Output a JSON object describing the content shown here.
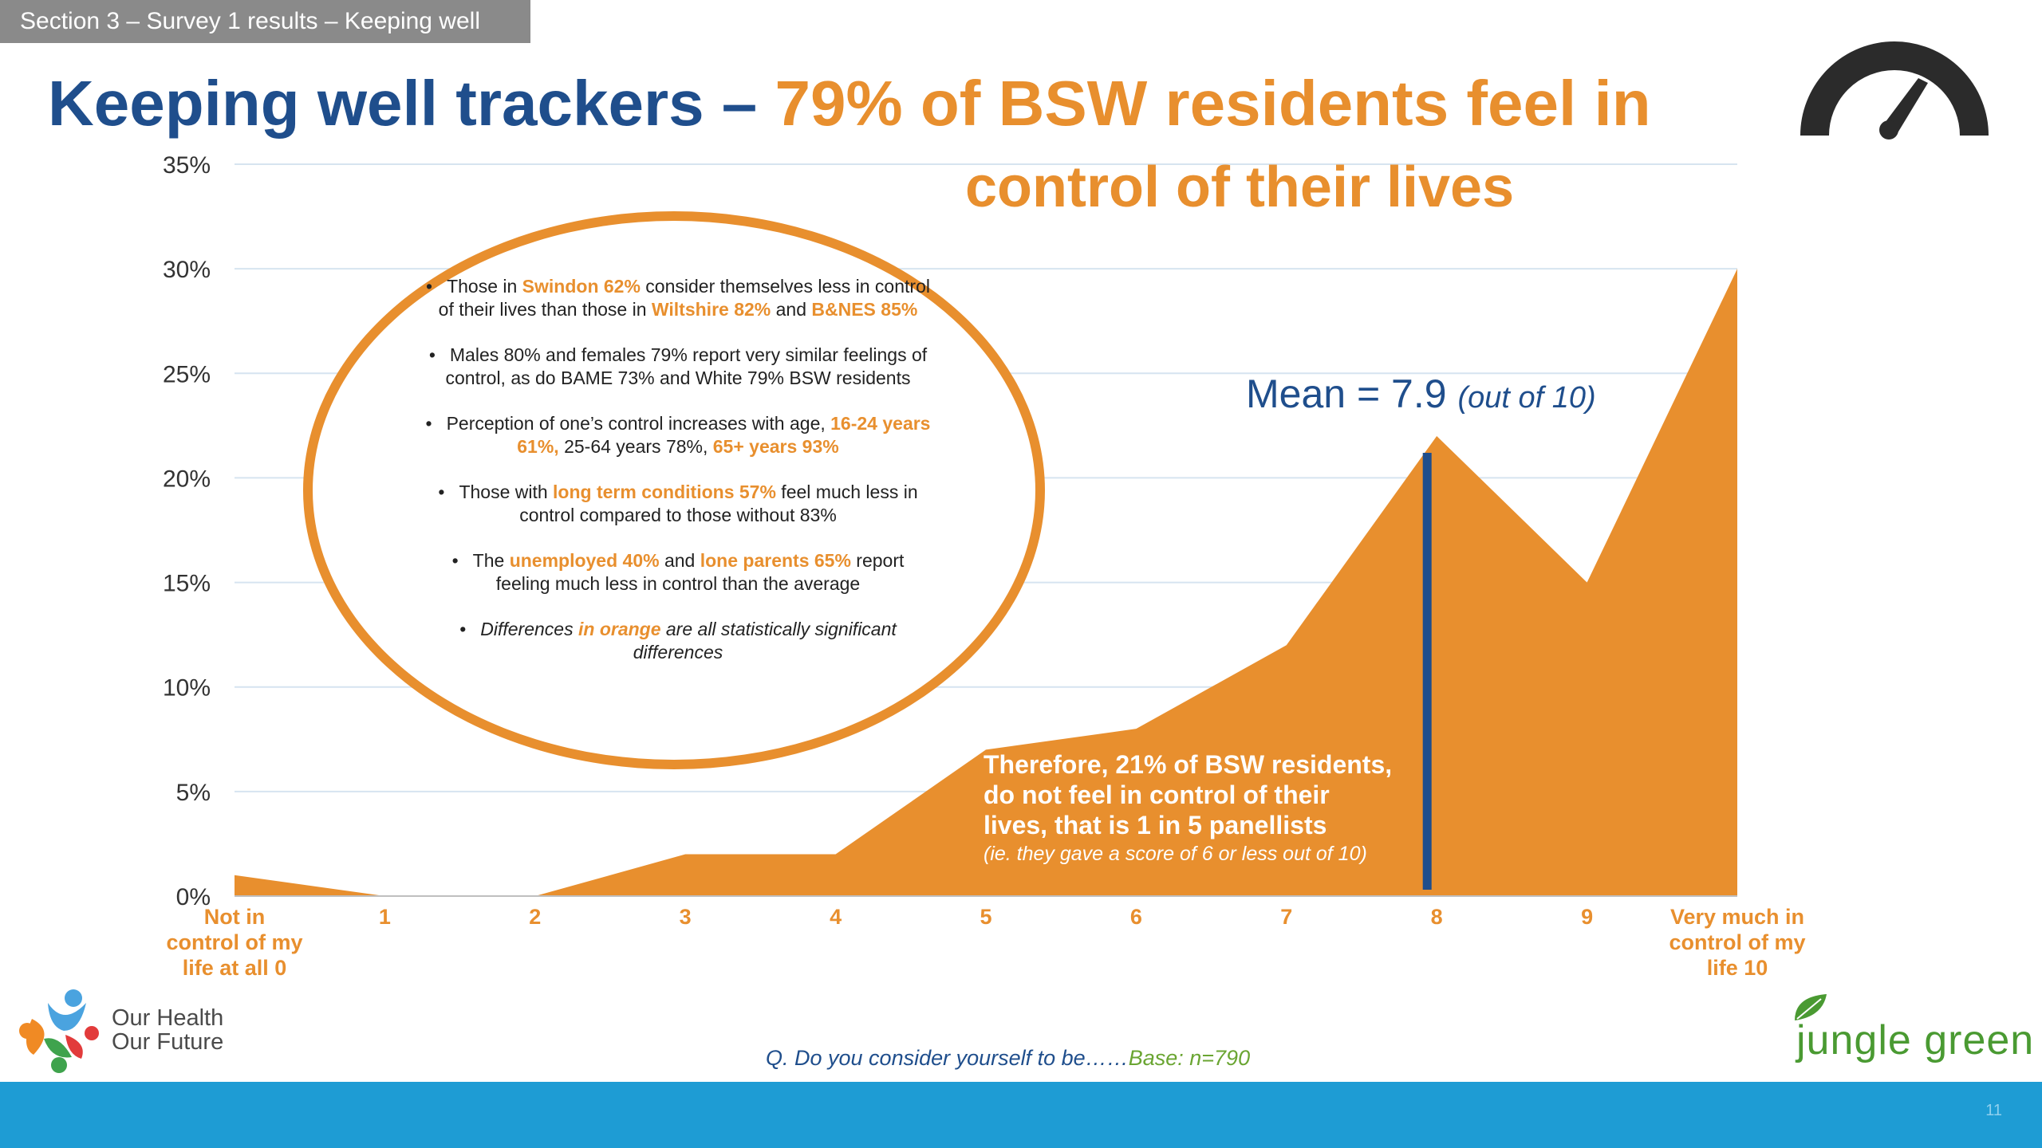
{
  "section_tab": "Section 3 – Survey 1 results – Keeping well",
  "title": {
    "main": "Keeping well trackers – ",
    "highlight": "79% of BSW residents feel in",
    "line2": "control of their lives"
  },
  "colors": {
    "accent_orange": "#e88f2e",
    "title_blue": "#1f4e8c",
    "mean_line": "#1f4e8c",
    "footer_bar": "#1e9cd4",
    "grid": "#d6e4f0"
  },
  "icons": {
    "top_right": "speedometer-gauge-icon",
    "bottom_left_logo": "our-health-our-future-logo",
    "bottom_right_logo": "jungle-green-leaf-logo"
  },
  "bullets": [
    {
      "parts": [
        [
          "Those in ",
          ""
        ],
        [
          "Swindon 62%",
          "hl"
        ],
        [
          " consider themselves less in control of their lives than those in ",
          ""
        ],
        [
          "Wiltshire 82%",
          "hl"
        ],
        [
          " and ",
          ""
        ],
        [
          "B&NES 85%",
          "hl"
        ]
      ]
    },
    {
      "parts": [
        [
          "Males 80% and females 79% report very similar feelings of control, as do BAME 73% and White 79% BSW residents",
          ""
        ]
      ]
    },
    {
      "parts": [
        [
          "Perception of one’s control increases with age, ",
          ""
        ],
        [
          "16-24 years 61%,",
          "hl"
        ],
        [
          " 25-64 years 78%, ",
          ""
        ],
        [
          "65+ years 93%",
          "hl"
        ]
      ]
    },
    {
      "parts": [
        [
          "Those with ",
          ""
        ],
        [
          "long term conditions 57%",
          "hl"
        ],
        [
          " feel much less in control compared to those without 83%",
          ""
        ]
      ]
    },
    {
      "parts": [
        [
          "The ",
          ""
        ],
        [
          "unemployed 40%",
          "hl"
        ],
        [
          " and ",
          ""
        ],
        [
          "lone parents 65%",
          "hl"
        ],
        [
          " report feeling much less in control than the average",
          ""
        ]
      ]
    },
    {
      "parts": [
        [
          "Differences ",
          "it"
        ],
        [
          "in orange",
          "hl it"
        ],
        [
          " are all statistically significant differences",
          "it"
        ]
      ]
    }
  ],
  "mean_label": {
    "main": "Mean = 7.9 ",
    "sub": "(out of 10)"
  },
  "therefore": {
    "lines": [
      "Therefore, 21% of BSW residents,",
      "do not feel in control of their",
      "lives, that is 1 in 5 panellists"
    ],
    "note": "(ie. they gave a score of 6 or less out of 10)"
  },
  "question": {
    "text": "Q. Do you consider yourself to be……",
    "base": "Base: n=790"
  },
  "logos": {
    "ohof_line1": "Our Health",
    "ohof_line2": "Our Future",
    "jungle_green": "jungle green"
  },
  "page_number": "11",
  "chart_data": {
    "type": "area",
    "categories": [
      "Not in control of my life at all 0",
      "1",
      "2",
      "3",
      "4",
      "5",
      "6",
      "7",
      "8",
      "9",
      "Very much in control of my life 10"
    ],
    "category_lines": [
      [
        "Not in",
        "control of my",
        "life at all 0"
      ],
      [
        "1"
      ],
      [
        "2"
      ],
      [
        "3"
      ],
      [
        "4"
      ],
      [
        "5"
      ],
      [
        "6"
      ],
      [
        "7"
      ],
      [
        "8"
      ],
      [
        "9"
      ],
      [
        "Very much in",
        "control of my",
        "life 10"
      ]
    ],
    "values": [
      1,
      0,
      0,
      2,
      2,
      7,
      8,
      12,
      22,
      15,
      30
    ],
    "ylim": [
      0,
      35
    ],
    "y_ticks": [
      0,
      5,
      10,
      15,
      20,
      25,
      30,
      35
    ],
    "y_tick_labels": [
      "0%",
      "5%",
      "10%",
      "15%",
      "20%",
      "25%",
      "30%",
      "35%"
    ],
    "mean": 7.9,
    "grid": true,
    "title": "",
    "xlabel": "",
    "ylabel": ""
  }
}
